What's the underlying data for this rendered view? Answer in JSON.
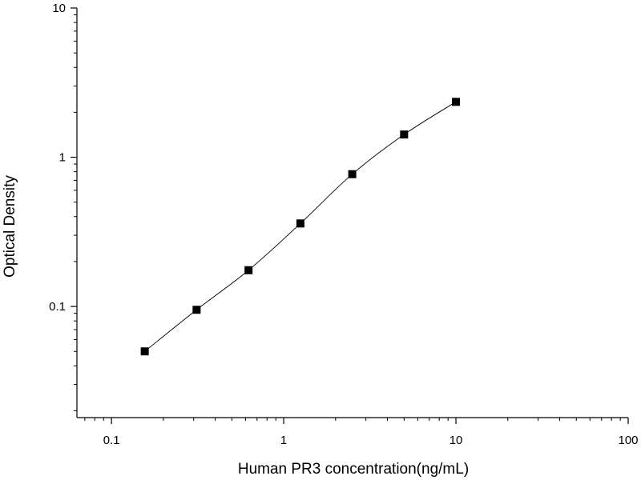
{
  "chart_data": {
    "type": "scatter",
    "title": "",
    "xlabel": "Human PR3 concentration(ng/mL)",
    "ylabel": "Optical Density",
    "x_scale": "log",
    "y_scale": "log",
    "xlim": [
      0.063,
      100
    ],
    "ylim": [
      0.018,
      10
    ],
    "x_ticks": [
      {
        "value": 0.1,
        "label": "0.1"
      },
      {
        "value": 1,
        "label": "1"
      },
      {
        "value": 10,
        "label": "10"
      },
      {
        "value": 100,
        "label": "100"
      }
    ],
    "y_ticks": [
      {
        "value": 0.1,
        "label": "0.1"
      },
      {
        "value": 1,
        "label": "1"
      },
      {
        "value": 10,
        "label": "10"
      }
    ],
    "grid": false,
    "legend": "none",
    "fit_curve": true,
    "series": [
      {
        "x": [
          0.156,
          0.312,
          0.625,
          1.25,
          2.5,
          5,
          10
        ],
        "y": [
          0.05,
          0.095,
          0.175,
          0.36,
          0.77,
          1.42,
          2.35
        ]
      }
    ],
    "colors": {
      "marker": "#000000",
      "line": "#000000",
      "axis": "#000000"
    }
  }
}
